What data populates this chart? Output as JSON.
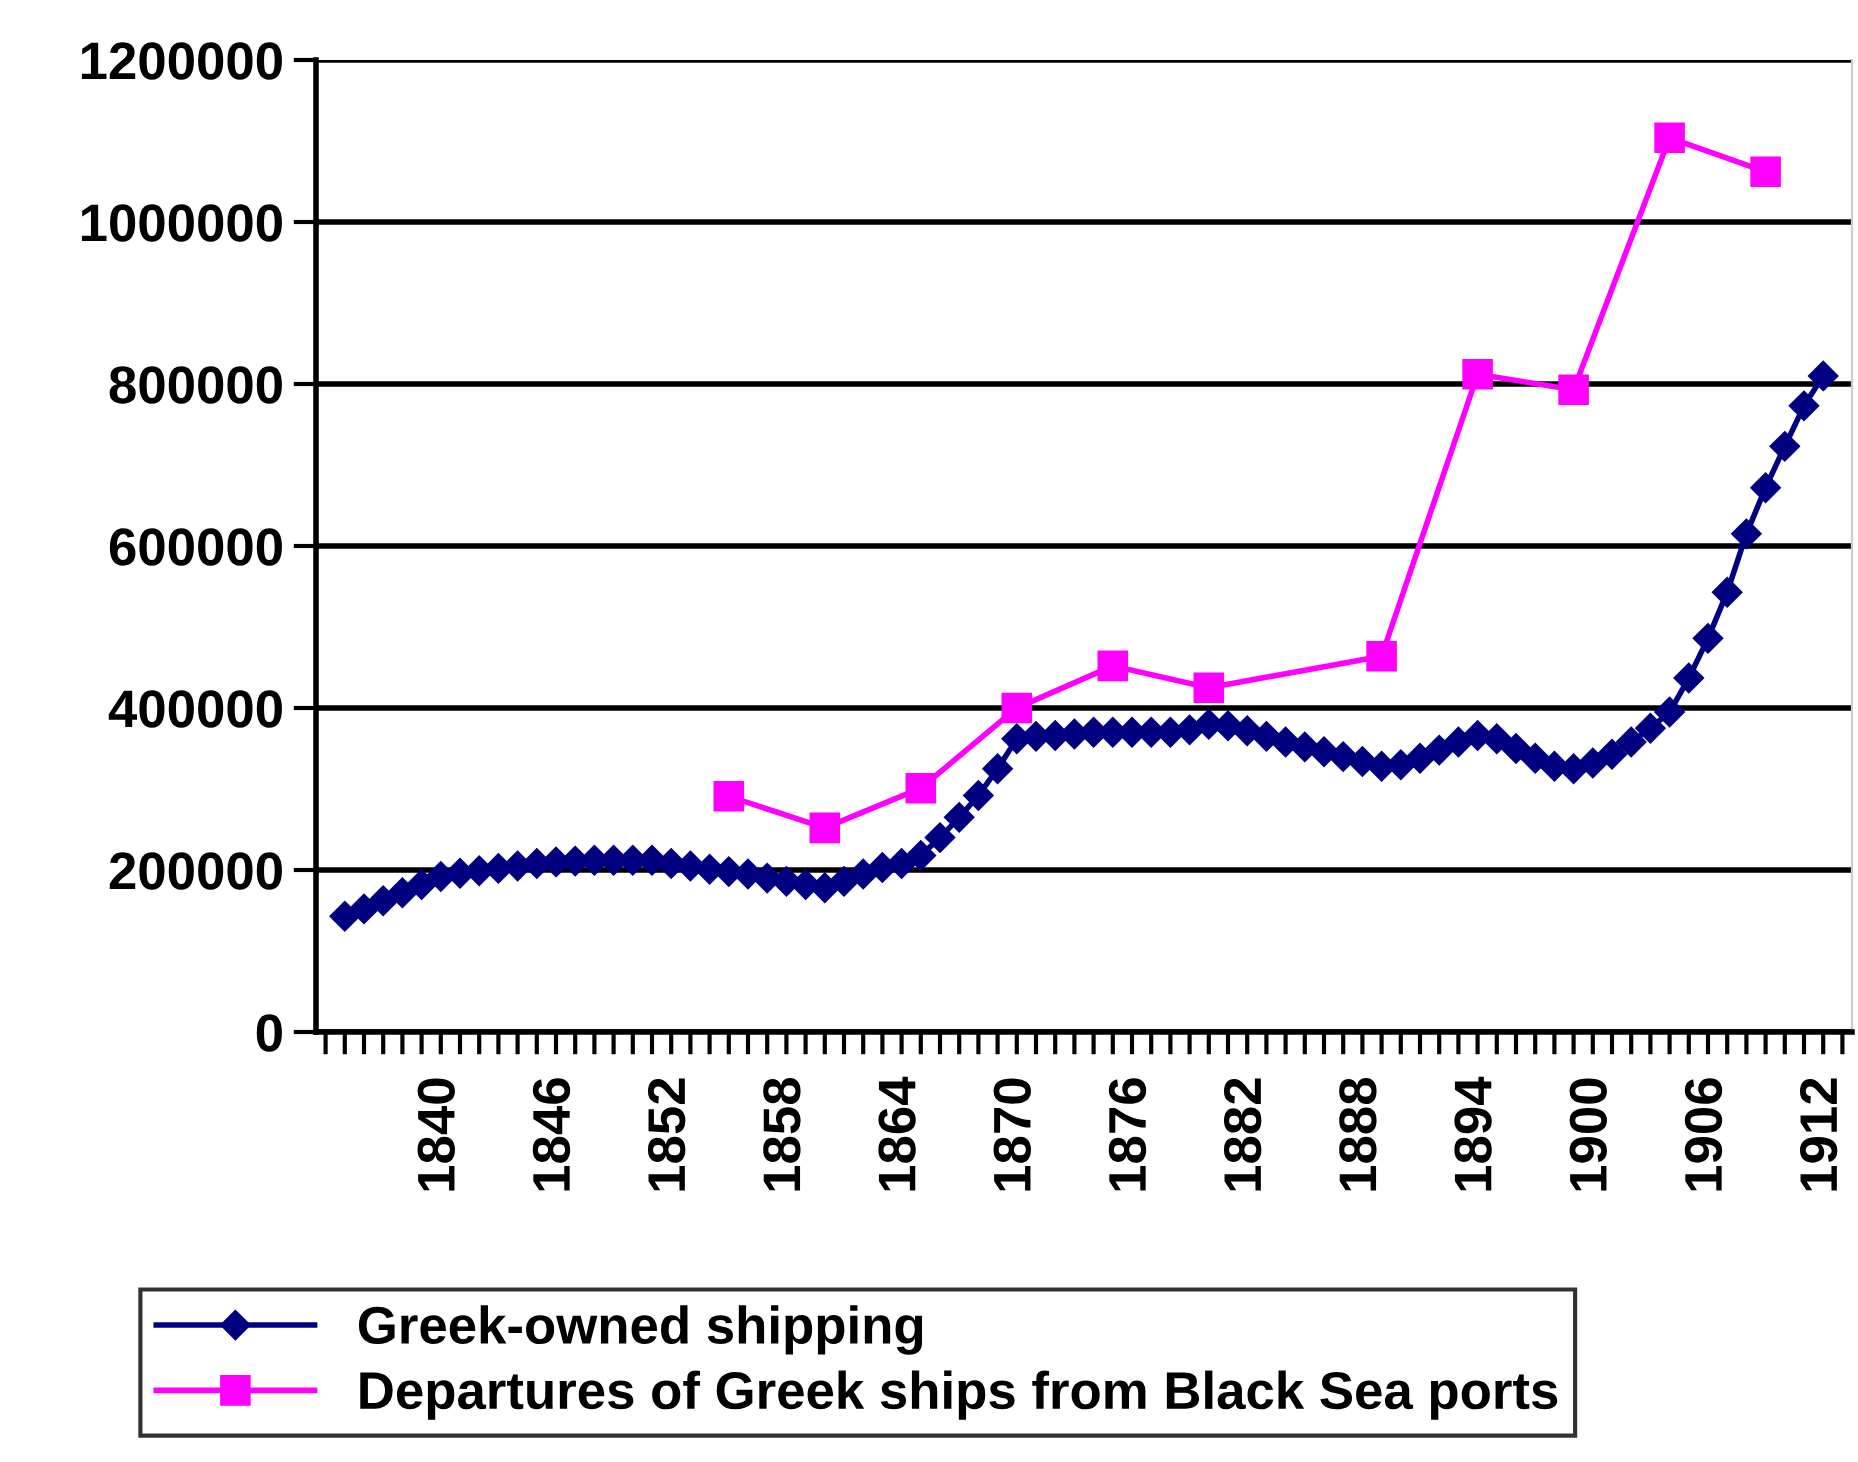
{
  "chart_data": {
    "type": "line",
    "series": [
      {
        "name": "Greek-owned shipping",
        "color": "#000080",
        "marker": "diamond",
        "x": [
          1835,
          1836,
          1837,
          1838,
          1839,
          1840,
          1841,
          1842,
          1843,
          1844,
          1845,
          1846,
          1847,
          1848,
          1849,
          1850,
          1851,
          1852,
          1853,
          1854,
          1855,
          1856,
          1857,
          1858,
          1859,
          1860,
          1861,
          1862,
          1863,
          1864,
          1865,
          1866,
          1867,
          1868,
          1869,
          1870,
          1871,
          1872,
          1873,
          1874,
          1875,
          1876,
          1877,
          1878,
          1879,
          1880,
          1881,
          1882,
          1883,
          1884,
          1885,
          1886,
          1887,
          1888,
          1889,
          1890,
          1891,
          1892,
          1893,
          1894,
          1895,
          1896,
          1897,
          1898,
          1899,
          1900,
          1901,
          1902,
          1903,
          1904,
          1905,
          1906,
          1907,
          1908,
          1909,
          1910,
          1911,
          1912
        ],
        "values": [
          143000,
          152000,
          162000,
          172000,
          182000,
          192000,
          196000,
          199000,
          202000,
          205000,
          208000,
          210000,
          211000,
          212000,
          212000,
          212000,
          212000,
          208000,
          205000,
          201000,
          198000,
          195000,
          190000,
          186000,
          182000,
          178000,
          186000,
          195000,
          203000,
          208000,
          218000,
          240000,
          265000,
          292000,
          325000,
          362000,
          365000,
          366000,
          368000,
          370000,
          370000,
          370000,
          370000,
          370000,
          373000,
          380000,
          378000,
          372000,
          365000,
          358000,
          352000,
          346000,
          340000,
          334000,
          328000,
          330000,
          338000,
          348000,
          358000,
          366000,
          362000,
          350000,
          338000,
          328000,
          325000,
          332000,
          343000,
          358000,
          375000,
          395000,
          437000,
          486000,
          543000,
          615000,
          672000,
          723000,
          773000,
          810000
        ]
      },
      {
        "name": "Departures of Greek ships from Black Sea ports",
        "color": "#ff00ff",
        "marker": "square",
        "x": [
          1855,
          1860,
          1865,
          1870,
          1875,
          1880,
          1889,
          1894,
          1899,
          1904,
          1909
        ],
        "values": [
          291000,
          252000,
          301000,
          400000,
          452000,
          425000,
          464000,
          812000,
          793000,
          1104000,
          1062000
        ]
      }
    ],
    "xlim": [
      1833.5,
      1913.5
    ],
    "xticks": [
      1840,
      1846,
      1852,
      1858,
      1864,
      1870,
      1876,
      1882,
      1888,
      1894,
      1900,
      1906,
      1912
    ],
    "ylim": [
      0,
      1200000
    ],
    "yticks": [
      0,
      200000,
      400000,
      600000,
      800000,
      1000000,
      1200000
    ],
    "grid": "y",
    "legend": "bottom"
  }
}
